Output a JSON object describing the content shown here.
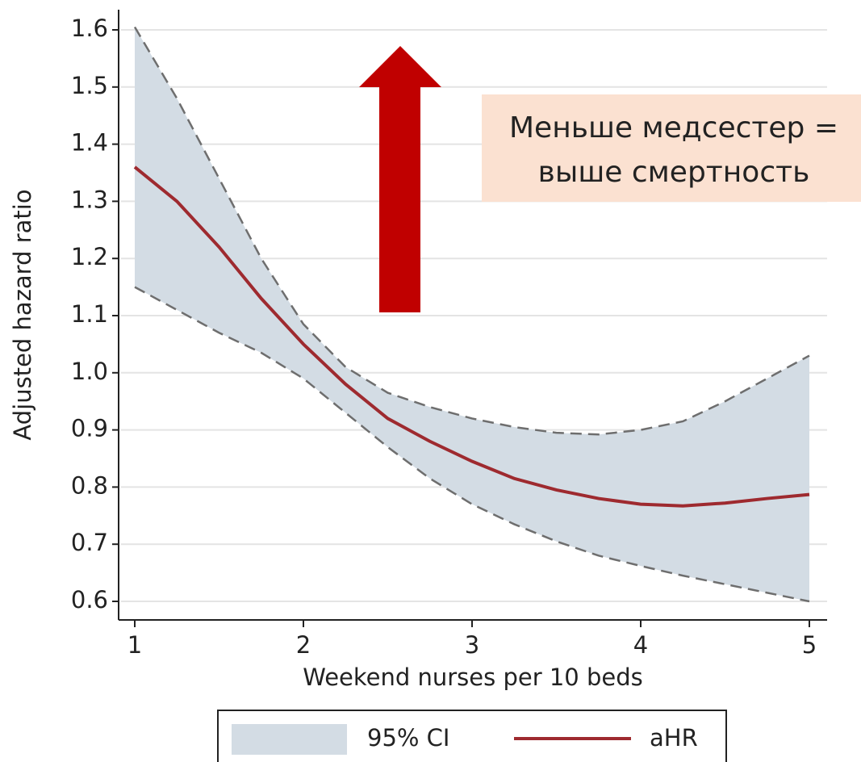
{
  "chart_data": {
    "type": "band-line",
    "xlabel": "Weekend nurses per 10 beds",
    "ylabel": "Adjusted hazard ratio",
    "annotation": [
      "Меньше медсестер =",
      "выше смертность"
    ],
    "x": [
      1,
      1.25,
      1.5,
      1.75,
      2,
      2.25,
      2.5,
      2.75,
      3,
      3.25,
      3.5,
      3.75,
      4,
      4.25,
      4.5,
      4.75,
      5
    ],
    "series": [
      {
        "name": "95% CI",
        "color": "#d3dce4",
        "edge_color": "#6e6e6e",
        "upper": [
          1.605,
          1.48,
          1.34,
          1.2,
          1.085,
          1.01,
          0.965,
          0.94,
          0.92,
          0.905,
          0.895,
          0.892,
          0.9,
          0.915,
          0.95,
          0.99,
          1.03
        ],
        "lower": [
          1.15,
          1.11,
          1.07,
          1.035,
          0.99,
          0.93,
          0.87,
          0.815,
          0.77,
          0.735,
          0.705,
          0.68,
          0.662,
          0.645,
          0.63,
          0.615,
          0.6
        ]
      },
      {
        "name": "aHR",
        "color": "#9e2a2f",
        "values": [
          1.36,
          1.3,
          1.22,
          1.13,
          1.05,
          0.98,
          0.92,
          0.88,
          0.845,
          0.815,
          0.795,
          0.78,
          0.77,
          0.767,
          0.772,
          0.78,
          0.787
        ]
      }
    ],
    "xlim": [
      1,
      5
    ],
    "xticks": [
      1,
      2,
      3,
      4,
      5
    ],
    "ylim": [
      0.6,
      1.6
    ],
    "yticks": [
      {
        "value": 0.6,
        "label": "0.6"
      },
      {
        "value": 0.7,
        "label": "0.7"
      },
      {
        "value": 0.8,
        "label": "0.8"
      },
      {
        "value": 0.9,
        "label": "0.9"
      },
      {
        "value": 1,
        "label": "1.0"
      },
      {
        "value": 1.1,
        "label": "1.1"
      },
      {
        "value": 1.2,
        "label": "1.2"
      },
      {
        "value": 1.3,
        "label": "1.3"
      },
      {
        "value": 1.4,
        "label": "1.4"
      },
      {
        "value": 1.5,
        "label": "1.5"
      },
      {
        "value": 1.6,
        "label": "1.6"
      }
    ],
    "grid": true
  }
}
